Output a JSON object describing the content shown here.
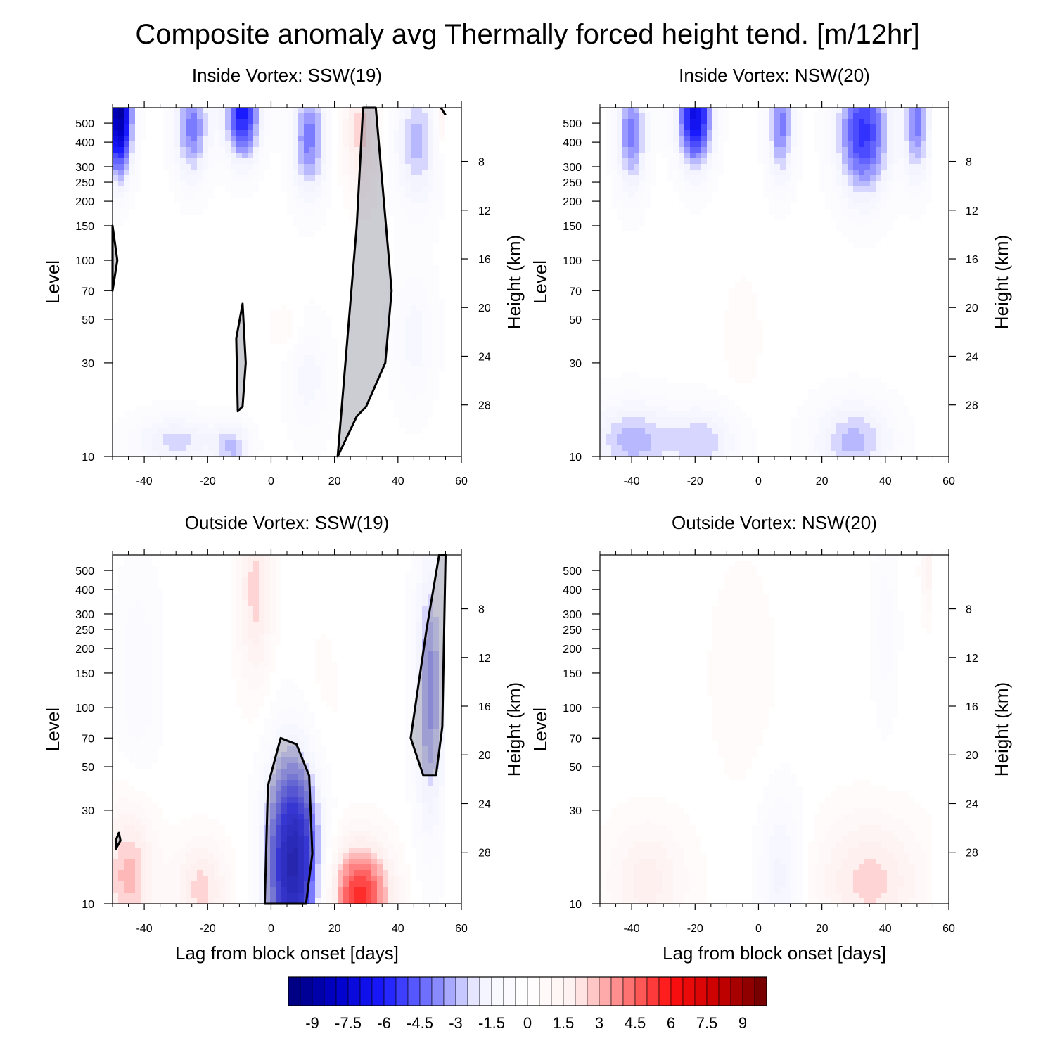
{
  "figure": {
    "title": "Composite anomaly avg Thermally forced height tend. [m/12hr]"
  },
  "chart_data": [
    {
      "type": "heatmap",
      "title": "Inside Vortex: SSW(19)",
      "xlabel": "",
      "ylabel": "Level",
      "y2label": "Height (km)",
      "xlim": [
        -50,
        60
      ],
      "ylim_hpa": [
        600,
        10
      ],
      "x_ticks": [
        -40,
        -20,
        0,
        20,
        40,
        60
      ],
      "y_ticks": [
        10,
        30,
        50,
        70,
        100,
        150,
        200,
        250,
        300,
        400,
        500
      ],
      "y2_ticks": [
        8,
        12,
        16,
        20,
        24,
        28
      ],
      "blobs": [
        {
          "x": -48,
          "y": 560,
          "sx": 3,
          "sy": 0.5,
          "v": -9
        },
        {
          "x": -30,
          "y": 12,
          "sx": 10,
          "sy": 0.22,
          "v": -2.5
        },
        {
          "x": -12,
          "y": 11,
          "sx": 4,
          "sy": 0.22,
          "v": -2.5
        },
        {
          "x": -25,
          "y": 480,
          "sx": 4,
          "sy": 0.45,
          "v": -4
        },
        {
          "x": -9,
          "y": 560,
          "sx": 4,
          "sy": 0.4,
          "v": -6
        },
        {
          "x": 5,
          "y": 45,
          "sx": 4,
          "sy": 0.2,
          "v": 0.8
        },
        {
          "x": 12,
          "y": 420,
          "sx": 4,
          "sy": 0.5,
          "v": -4
        },
        {
          "x": 12,
          "y": 25,
          "sx": 5,
          "sy": 0.5,
          "v": -1.5
        },
        {
          "x": 28,
          "y": 450,
          "sx": 4,
          "sy": 0.5,
          "v": 2.5
        },
        {
          "x": 46,
          "y": 400,
          "sx": 5,
          "sy": 0.55,
          "v": -3
        },
        {
          "x": 45,
          "y": 40,
          "sx": 5,
          "sy": 0.6,
          "v": -1.5
        },
        {
          "x": 55,
          "y": 550,
          "sx": 2,
          "sy": 0.3,
          "v": 2.5
        },
        {
          "x": 57,
          "y": 12,
          "sx": 2,
          "sy": 0.2,
          "v": 0.5
        }
      ],
      "significance": [
        {
          "x": [
            -50,
            -48.5,
            -50
          ],
          "y": [
            70,
            100,
            150
          ]
        },
        {
          "x": [
            -10.5,
            -9,
            -8,
            -9,
            -11
          ],
          "y": [
            17,
            18,
            30,
            60,
            40
          ]
        },
        {
          "x": [
            21,
            27,
            30,
            36,
            38,
            33,
            29,
            27
          ],
          "y": [
            10,
            16,
            18,
            30,
            70,
            600,
            600,
            150
          ]
        },
        {
          "x": [
            53.5,
            55
          ],
          "y": [
            600,
            550
          ]
        }
      ]
    },
    {
      "type": "heatmap",
      "title": "Inside Vortex: NSW(20)",
      "xlabel": "",
      "ylabel": "Level",
      "y2label": "Height (km)",
      "xlim": [
        -50,
        60
      ],
      "ylim_hpa": [
        600,
        10
      ],
      "x_ticks": [
        -40,
        -20,
        0,
        20,
        40,
        60
      ],
      "y_ticks": [
        10,
        30,
        50,
        70,
        100,
        150,
        200,
        250,
        300,
        400,
        500
      ],
      "y2_ticks": [
        8,
        12,
        16,
        20,
        24,
        28
      ],
      "blobs": [
        {
          "x": -40,
          "y": 12,
          "sx": 10,
          "sy": 0.35,
          "v": -3
        },
        {
          "x": -17,
          "y": 12,
          "sx": 8,
          "sy": 0.3,
          "v": -2.5
        },
        {
          "x": 30,
          "y": 12,
          "sx": 9,
          "sy": 0.35,
          "v": -3
        },
        {
          "x": -40,
          "y": 450,
          "sx": 3.5,
          "sy": 0.5,
          "v": -4
        },
        {
          "x": -20,
          "y": 560,
          "sx": 4,
          "sy": 0.45,
          "v": -7
        },
        {
          "x": 7,
          "y": 500,
          "sx": 3,
          "sy": 0.5,
          "v": -4
        },
        {
          "x": 33,
          "y": 450,
          "sx": 6,
          "sy": 0.55,
          "v": -5.5
        },
        {
          "x": 50,
          "y": 520,
          "sx": 3,
          "sy": 0.5,
          "v": -4
        },
        {
          "x": -5,
          "y": 40,
          "sx": 5,
          "sy": 0.6,
          "v": 0.5
        }
      ],
      "significance": []
    },
    {
      "type": "heatmap",
      "title": "Outside Vortex: SSW(19)",
      "xlabel": "Lag from block onset [days]",
      "ylabel": "Level",
      "y2label": "Height (km)",
      "xlim": [
        -50,
        60
      ],
      "ylim_hpa": [
        600,
        10
      ],
      "x_ticks": [
        -40,
        -20,
        0,
        20,
        40,
        60
      ],
      "y_ticks": [
        10,
        30,
        50,
        70,
        100,
        150,
        200,
        250,
        300,
        400,
        500
      ],
      "y2_ticks": [
        8,
        12,
        16,
        20,
        24,
        28
      ],
      "blobs": [
        {
          "x": -45,
          "y": 14,
          "sx": 6,
          "sy": 0.6,
          "v": 3
        },
        {
          "x": -22,
          "y": 12,
          "sx": 6,
          "sy": 0.4,
          "v": 2.5
        },
        {
          "x": 7,
          "y": 16,
          "sx": 6,
          "sy": 0.9,
          "v": -8
        },
        {
          "x": 28,
          "y": 11,
          "sx": 7,
          "sy": 0.45,
          "v": 5.5
        },
        {
          "x": -42,
          "y": 150,
          "sx": 5,
          "sy": 0.9,
          "v": -1.2
        },
        {
          "x": -5,
          "y": 400,
          "sx": 4,
          "sy": 0.8,
          "v": 2.5
        },
        {
          "x": 50,
          "y": 120,
          "sx": 3.5,
          "sy": 1.2,
          "v": -3.5
        },
        {
          "x": 15,
          "y": 100,
          "sx": 6,
          "sy": 0.8,
          "v": 0.5
        }
      ],
      "significance": [
        {
          "x": [
            -49,
            -47.5,
            -48,
            -49
          ],
          "y": [
            19,
            21,
            23,
            21
          ]
        },
        {
          "x": [
            -2,
            11,
            13,
            12,
            8,
            3,
            -1
          ],
          "y": [
            10,
            10,
            18,
            45,
            65,
            70,
            40
          ]
        },
        {
          "x": [
            44,
            48,
            52,
            54,
            55,
            53,
            49
          ],
          "y": [
            70,
            45,
            45,
            80,
            600,
            600,
            250
          ]
        }
      ]
    },
    {
      "type": "heatmap",
      "title": "Outside Vortex: NSW(20)",
      "xlabel": "Lag from block onset [days]",
      "ylabel": "Level",
      "y2label": "Height (km)",
      "xlim": [
        -50,
        60
      ],
      "ylim_hpa": [
        600,
        10
      ],
      "x_ticks": [
        -40,
        -20,
        0,
        20,
        40,
        60
      ],
      "y_ticks": [
        10,
        30,
        50,
        70,
        100,
        150,
        200,
        250,
        300,
        400,
        500
      ],
      "y2_ticks": [
        8,
        12,
        16,
        20,
        24,
        28
      ],
      "blobs": [
        {
          "x": -35,
          "y": 13,
          "sx": 9,
          "sy": 0.5,
          "v": 2
        },
        {
          "x": 35,
          "y": 13,
          "sx": 12,
          "sy": 0.55,
          "v": 2.5
        },
        {
          "x": 7,
          "y": 14,
          "sx": 5,
          "sy": 0.7,
          "v": -2
        },
        {
          "x": -5,
          "y": 150,
          "sx": 8,
          "sy": 1.0,
          "v": 0.6
        },
        {
          "x": 40,
          "y": 250,
          "sx": 3,
          "sy": 0.8,
          "v": -1
        },
        {
          "x": 54,
          "y": 500,
          "sx": 2,
          "sy": 0.4,
          "v": 1.5
        }
      ],
      "significance": []
    }
  ],
  "colorbar": {
    "min": -10,
    "max": 10,
    "step": 0.5,
    "label_values": [
      "-9",
      "-7.5",
      "-6",
      "-4.5",
      "-3",
      "-1.5",
      "0",
      "1.5",
      "3",
      "4.5",
      "6",
      "7.5",
      "9"
    ],
    "color_stops": [
      "#00007a",
      "#0000c8",
      "#1a1aff",
      "#7b7bff",
      "#f4f4ff",
      "#ffffff",
      "#fff0f0",
      "#ff8080",
      "#ff1010",
      "#c80000",
      "#6e0000"
    ]
  }
}
